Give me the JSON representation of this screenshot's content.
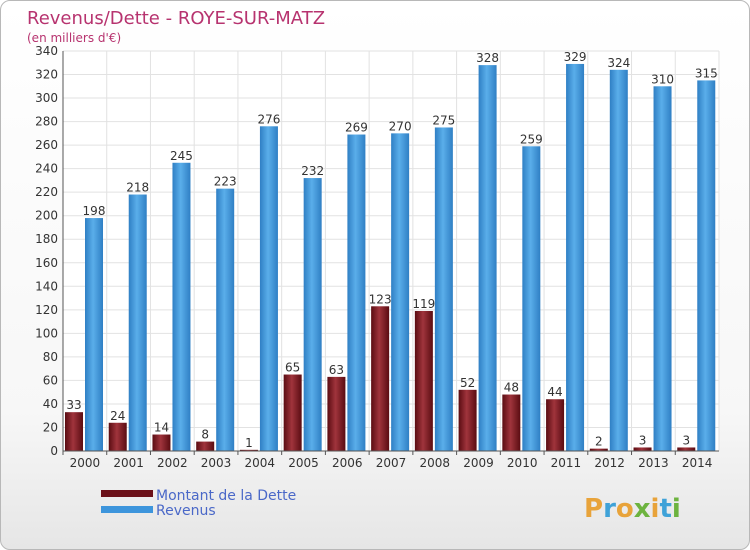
{
  "chart_data": {
    "type": "bar",
    "title": "Revenus/Dette - ROYE-SUR-MATZ",
    "subtitle": "(en milliers d'€)",
    "categories": [
      "2000",
      "2001",
      "2002",
      "2003",
      "2004",
      "2005",
      "2006",
      "2007",
      "2008",
      "2009",
      "2010",
      "2011",
      "2012",
      "2013",
      "2014"
    ],
    "series": [
      {
        "name": "Montant de la Dette",
        "color": "#7b1820",
        "values": [
          33,
          24,
          14,
          8,
          1,
          65,
          63,
          123,
          119,
          52,
          48,
          44,
          2,
          3,
          3
        ]
      },
      {
        "name": "Revenus",
        "color": "#3d95dc",
        "values": [
          198,
          218,
          245,
          223,
          276,
          232,
          269,
          270,
          275,
          328,
          259,
          329,
          324,
          310,
          315
        ]
      }
    ],
    "ylim": [
      0,
      340
    ],
    "yticks": [
      0,
      20,
      40,
      60,
      80,
      100,
      120,
      140,
      160,
      180,
      200,
      220,
      240,
      260,
      280,
      300,
      320,
      340
    ],
    "grid": true,
    "legend": "bottom-left"
  },
  "brand": {
    "letters": [
      "P",
      "r",
      "o",
      "x",
      "i",
      "t",
      "i"
    ],
    "colors": [
      "#e8a33a",
      "#3fa2d8",
      "#e8a33a",
      "#6db33f",
      "#e8a33a",
      "#3fa2d8",
      "#6db33f"
    ]
  }
}
